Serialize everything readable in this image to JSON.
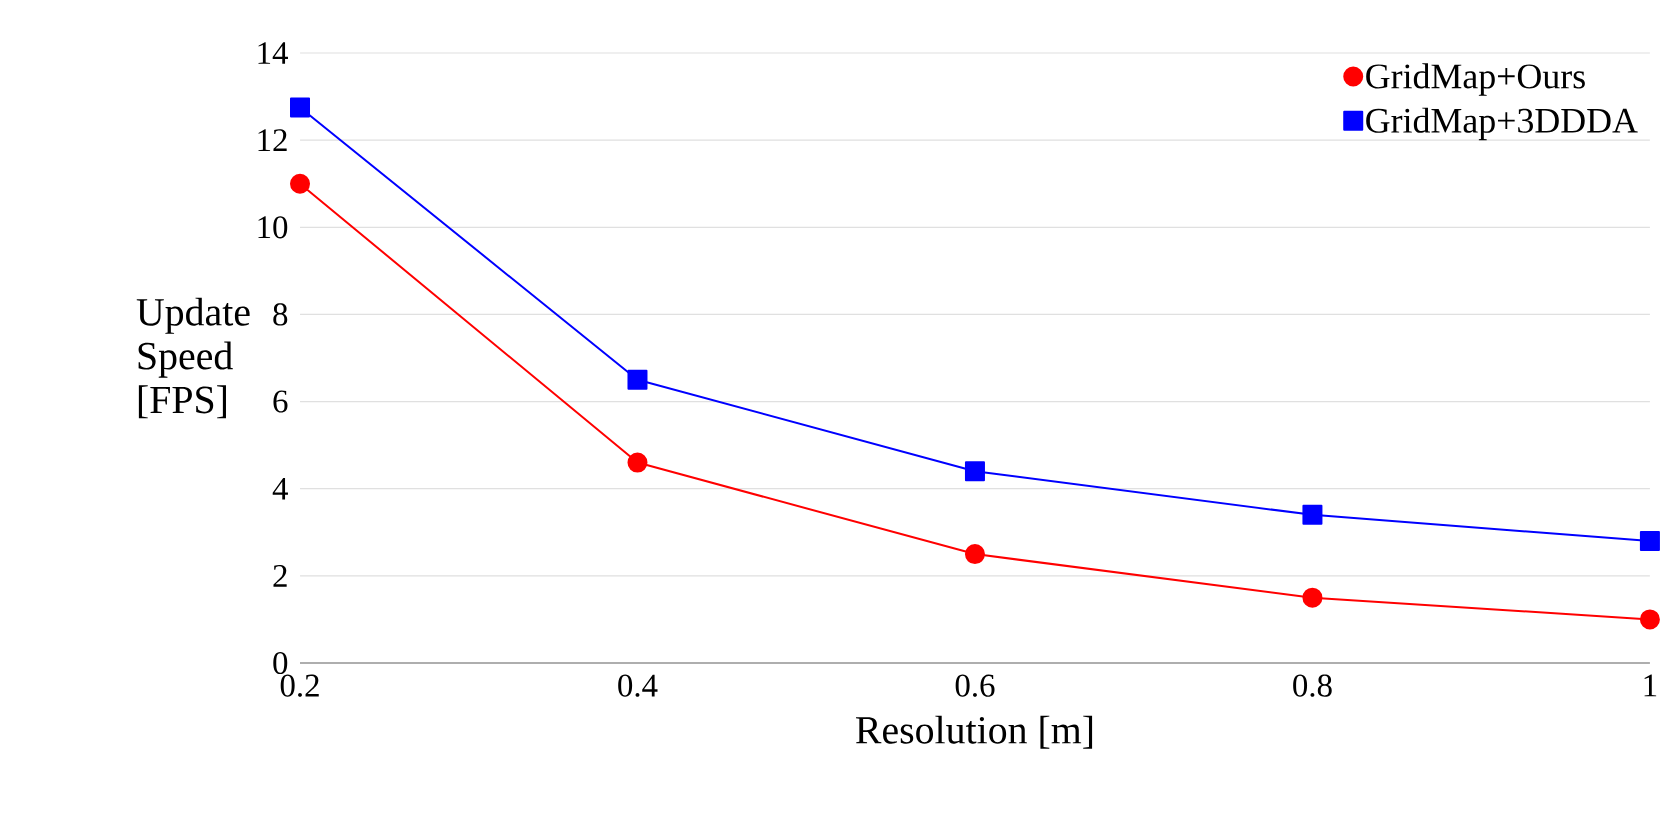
{
  "chart_data": {
    "type": "line",
    "xlabel": "Resolution [m]",
    "ylabel": "Update Speed [FPS]",
    "x": [
      0.2,
      0.4,
      0.6,
      0.8,
      1
    ],
    "series": [
      {
        "name": "GridMap+Ours",
        "color": "#ff0000",
        "marker": "circle",
        "values": [
          11,
          4.6,
          2.5,
          1.5,
          1.0
        ]
      },
      {
        "name": "GridMap+3DDDA",
        "color": "#0000ff",
        "marker": "square",
        "values": [
          12.75,
          6.5,
          4.4,
          3.4,
          2.8
        ]
      }
    ],
    "xlim": [
      0.2,
      1
    ],
    "ylim": [
      0,
      14
    ],
    "xticks": [
      0.2,
      0.4,
      0.6,
      0.8,
      1
    ],
    "yticks": [
      0,
      2,
      4,
      6,
      8,
      10,
      12,
      14
    ],
    "grid": "y",
    "legend": "top right",
    "line_style": "solid"
  }
}
